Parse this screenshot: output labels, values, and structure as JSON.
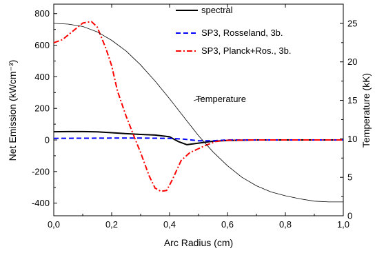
{
  "chart_data": {
    "type": "line",
    "xlabel": "Arc Radius (cm)",
    "ylabel": "Net Emission (kWcm⁻³)",
    "y2label": "Temperature (kK)",
    "xlim": [
      0,
      1
    ],
    "ylim": [
      -480,
      860
    ],
    "y2lim": [
      0,
      27.5
    ],
    "xticks": [
      0,
      0.2,
      0.4,
      0.6,
      0.8,
      1.0
    ],
    "xtick_labels": [
      "0,0",
      "0,2",
      "0,4",
      "0,6",
      "0,8",
      "1,0"
    ],
    "yticks": [
      -400,
      -200,
      0,
      200,
      400,
      600,
      800
    ],
    "ytick_labels": [
      "-400",
      "-200",
      "0",
      "200",
      "400",
      "600",
      "800"
    ],
    "y2ticks": [
      0,
      5,
      10,
      15,
      20,
      25
    ],
    "y2tick_labels": [
      "0",
      "5",
      "10",
      "15",
      "20",
      "25"
    ],
    "grid": false,
    "legend": "top-right",
    "annotation": "Temperature",
    "series": [
      {
        "name": "spectral",
        "color": "#000000",
        "style": "solid",
        "axis": "left",
        "x": [
          0,
          0.05,
          0.1,
          0.15,
          0.2,
          0.25,
          0.3,
          0.35,
          0.4,
          0.43,
          0.46,
          0.5,
          0.55,
          0.6,
          0.7,
          0.8,
          0.9,
          1.0
        ],
        "y": [
          52,
          53,
          53,
          51,
          46,
          40,
          35,
          31,
          20,
          -10,
          -30,
          -20,
          -8,
          -3,
          0,
          0,
          0,
          0
        ]
      },
      {
        "name": "SP3, Rosseland, 3b.",
        "color": "#0000ff",
        "style": "dashed",
        "axis": "left",
        "x": [
          0,
          0.1,
          0.2,
          0.3,
          0.4,
          0.45,
          0.5,
          0.55,
          0.6,
          0.7,
          0.8,
          0.9,
          1.0
        ],
        "y": [
          10,
          11,
          12,
          12,
          10,
          5,
          -5,
          -5,
          0,
          0,
          0,
          0,
          0
        ]
      },
      {
        "name": "SP3, Planck+Ros., 3b.",
        "color": "#ff0000",
        "style": "dashdot",
        "axis": "left",
        "x": [
          0,
          0.03,
          0.06,
          0.1,
          0.13,
          0.15,
          0.18,
          0.2,
          0.22,
          0.25,
          0.28,
          0.3,
          0.33,
          0.35,
          0.37,
          0.39,
          0.41,
          0.44,
          0.47,
          0.5,
          0.53,
          0.56,
          0.6,
          0.7,
          0.8,
          0.9,
          1.0
        ],
        "y": [
          615,
          635,
          680,
          740,
          750,
          715,
          580,
          470,
          310,
          150,
          10,
          -80,
          -230,
          -305,
          -325,
          -320,
          -250,
          -130,
          -80,
          -55,
          -30,
          -10,
          -2,
          0,
          0,
          0,
          0
        ]
      },
      {
        "name": "Temperature",
        "color": "#000000",
        "style": "thin",
        "axis": "right",
        "x": [
          0,
          0.05,
          0.1,
          0.15,
          0.2,
          0.25,
          0.3,
          0.35,
          0.4,
          0.45,
          0.5,
          0.55,
          0.6,
          0.65,
          0.7,
          0.75,
          0.8,
          0.85,
          0.9,
          0.95,
          1.0
        ],
        "y": [
          25.0,
          24.9,
          24.6,
          23.9,
          22.8,
          21.4,
          19.6,
          17.5,
          15.2,
          12.8,
          10.4,
          8.3,
          6.5,
          5.0,
          3.9,
          3.1,
          2.6,
          2.2,
          1.9,
          1.8,
          1.8
        ]
      }
    ]
  }
}
